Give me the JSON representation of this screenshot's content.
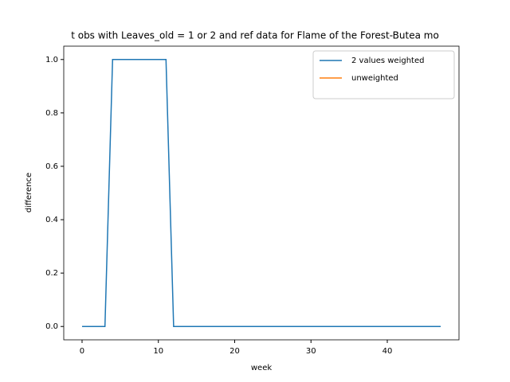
{
  "chart_data": {
    "type": "line",
    "title": "t obs with Leaves_old = 1 or 2 and ref data for Flame of the Forest-Butea mo",
    "x_label": "week",
    "y_label": "difference",
    "x": [
      0,
      1,
      2,
      3,
      4,
      5,
      6,
      7,
      8,
      9,
      10,
      11,
      12,
      13,
      14,
      15,
      16,
      17,
      18,
      19,
      20,
      21,
      22,
      23,
      24,
      25,
      26,
      27,
      28,
      29,
      30,
      31,
      32,
      33,
      34,
      35,
      36,
      37,
      38,
      39,
      40,
      41,
      42,
      43,
      44,
      45,
      46,
      47
    ],
    "series": [
      {
        "name": "2 values weighted",
        "color": "#1f77b4",
        "values": [
          0,
          0,
          0,
          0,
          1,
          1,
          1,
          1,
          1,
          1,
          1,
          1,
          0,
          0,
          0,
          0,
          0,
          0,
          0,
          0,
          0,
          0,
          0,
          0,
          0,
          0,
          0,
          0,
          0,
          0,
          0,
          0,
          0,
          0,
          0,
          0,
          0,
          0,
          0,
          0,
          0,
          0,
          0,
          0,
          0,
          0,
          0,
          0
        ]
      },
      {
        "name": "unweighted",
        "color": "#ff7f0e",
        "values": [
          null,
          null,
          null,
          null,
          null,
          null,
          null,
          null,
          null,
          null,
          null,
          null,
          null,
          null,
          null,
          null,
          null,
          null,
          null,
          null,
          null,
          null,
          null,
          null,
          null,
          null,
          null,
          null,
          null,
          null,
          null,
          null,
          null,
          null,
          null,
          null,
          null,
          null,
          null,
          null,
          null,
          null,
          null,
          null,
          null,
          null,
          null,
          null
        ]
      }
    ],
    "xlim": [
      -2.4,
      49.4
    ],
    "xticks": [
      0,
      10,
      20,
      30,
      40
    ],
    "ylim": [
      -0.05,
      1.05
    ],
    "yticks": [
      {
        "value": 0,
        "label": "0.0"
      },
      {
        "value": 0.2,
        "label": "0.2"
      },
      {
        "value": 0.4,
        "label": "0.4"
      },
      {
        "value": 0.6,
        "label": "0.6"
      },
      {
        "value": 0.8,
        "label": "0.8"
      },
      {
        "value": 1,
        "label": "1.0"
      }
    ],
    "legend": "upper right"
  }
}
